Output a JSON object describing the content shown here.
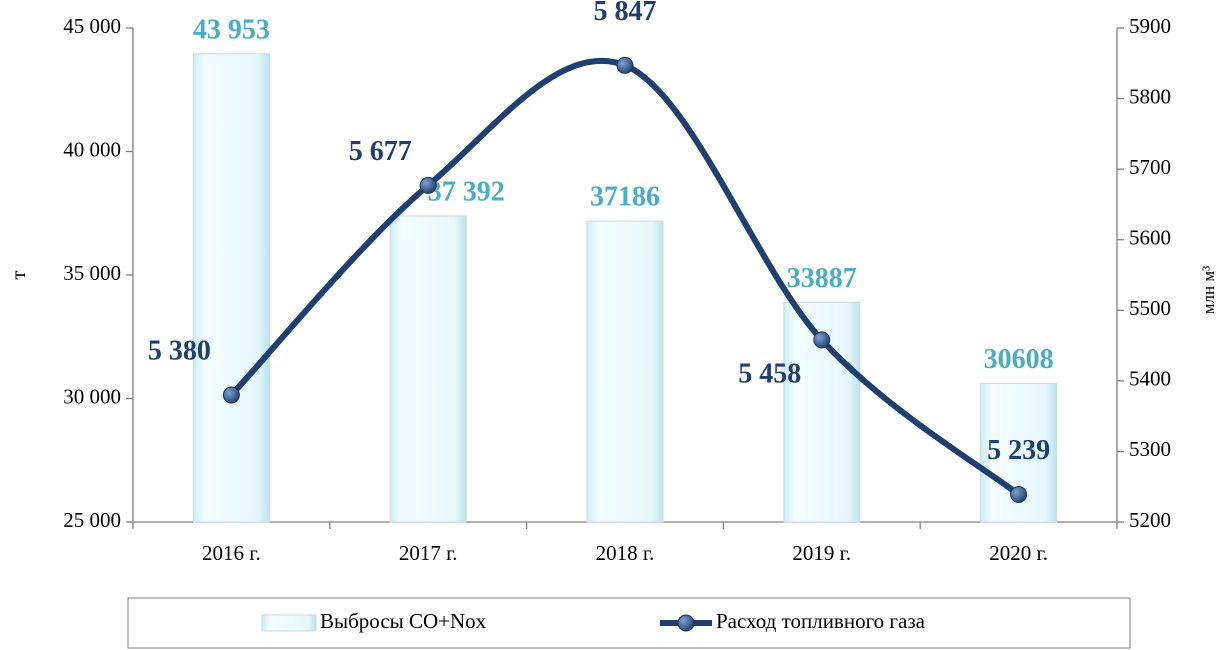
{
  "chart_data": {
    "type": "combo",
    "categories": [
      "2016 г.",
      "2017 г.",
      "2018 г.",
      "2019 г.",
      "2020 г."
    ],
    "series": [
      {
        "name": "Выбросы CO+Nox",
        "type": "bar",
        "color": "#e3f7fb",
        "values": [
          43953,
          37392,
          37186,
          33887,
          30608
        ],
        "value_labels": [
          "43 953",
          "37 392",
          "37186",
          "33887",
          "30608"
        ]
      },
      {
        "name": "Расход топливного газа",
        "type": "line",
        "axis": "y2",
        "color": "#1f3f6e",
        "values": [
          5380,
          5677,
          5847,
          5458,
          5239
        ],
        "value_labels": [
          "5 380",
          "5 677",
          "5 847",
          "5 458",
          "5 239"
        ]
      }
    ],
    "ylabel": "т",
    "y2label": "млн м³",
    "ylim": [
      25000,
      45000
    ],
    "yticks": [
      {
        "value": 25000,
        "label": "25 000"
      },
      {
        "value": 30000,
        "label": "30 000"
      },
      {
        "value": 35000,
        "label": "35 000"
      },
      {
        "value": 40000,
        "label": "40 000"
      },
      {
        "value": 45000,
        "label": "45 000"
      }
    ],
    "y2lim": [
      5200,
      5900
    ],
    "y2ticks": [
      5200,
      5300,
      5400,
      5500,
      5600,
      5700,
      5800,
      5900
    ],
    "legend": "bottom"
  }
}
